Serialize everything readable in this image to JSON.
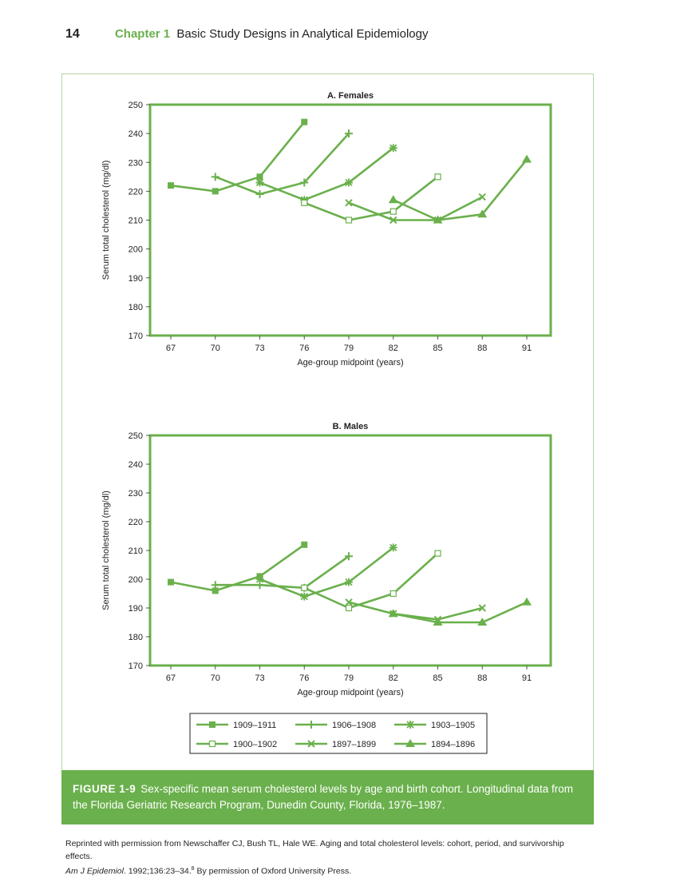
{
  "header": {
    "page_number": "14",
    "chapter_label": "Chapter 1",
    "chapter_title": "Basic Study Designs in Analytical Epidemiology"
  },
  "colors": {
    "accent": "#6ab04c",
    "series": "#6ab04c"
  },
  "legend": {
    "entries": [
      {
        "label": "1909–1911",
        "marker": "filled-square"
      },
      {
        "label": "1906–1908",
        "marker": "plus"
      },
      {
        "label": "1903–1905",
        "marker": "asterisk"
      },
      {
        "label": "1900–1902",
        "marker": "open-square"
      },
      {
        "label": "1897–1899",
        "marker": "x"
      },
      {
        "label": "1894–1896",
        "marker": "filled-triangle"
      }
    ]
  },
  "chart_data": [
    {
      "type": "line",
      "title": "A. Females",
      "xlabel": "Age-group midpoint (years)",
      "ylabel": "Serum total cholesterol (mg/dl)",
      "ylim": [
        170,
        250
      ],
      "y_ticks": [
        170,
        180,
        190,
        200,
        210,
        220,
        230,
        240,
        250
      ],
      "x_ticks": [
        67,
        70,
        73,
        76,
        79,
        82,
        85,
        88,
        91
      ],
      "grid": false,
      "series": [
        {
          "name": "1909–1911",
          "marker": "filled-square",
          "x": [
            67,
            70,
            73,
            76
          ],
          "y": [
            222,
            220,
            225,
            244
          ]
        },
        {
          "name": "1906–1908",
          "marker": "plus",
          "x": [
            70,
            73,
            76,
            79
          ],
          "y": [
            225,
            219,
            223,
            240
          ]
        },
        {
          "name": "1903–1905",
          "marker": "asterisk",
          "x": [
            73,
            76,
            79,
            82
          ],
          "y": [
            223,
            217,
            223,
            235
          ]
        },
        {
          "name": "1900–1902",
          "marker": "open-square",
          "x": [
            76,
            79,
            82,
            85
          ],
          "y": [
            216,
            210,
            213,
            225
          ]
        },
        {
          "name": "1897–1899",
          "marker": "x",
          "x": [
            79,
            82,
            85,
            88
          ],
          "y": [
            216,
            210,
            210,
            218
          ]
        },
        {
          "name": "1894–1896",
          "marker": "filled-triangle",
          "x": [
            82,
            85,
            88,
            91
          ],
          "y": [
            217,
            210,
            212,
            231
          ]
        }
      ]
    },
    {
      "type": "line",
      "title": "B. Males",
      "xlabel": "Age-group midpoint (years)",
      "ylabel": "Serum total cholesterol (mg/dl)",
      "ylim": [
        170,
        250
      ],
      "y_ticks": [
        170,
        180,
        190,
        200,
        210,
        220,
        230,
        240,
        250
      ],
      "x_ticks": [
        67,
        70,
        73,
        76,
        79,
        82,
        85,
        88,
        91
      ],
      "grid": false,
      "series": [
        {
          "name": "1909–1911",
          "marker": "filled-square",
          "x": [
            67,
            70,
            73,
            76
          ],
          "y": [
            199,
            196,
            201,
            212
          ]
        },
        {
          "name": "1906–1908",
          "marker": "plus",
          "x": [
            70,
            73,
            76,
            79
          ],
          "y": [
            198,
            198,
            197,
            208
          ]
        },
        {
          "name": "1903–1905",
          "marker": "asterisk",
          "x": [
            73,
            76,
            79,
            82
          ],
          "y": [
            200,
            194,
            199,
            211
          ]
        },
        {
          "name": "1900–1902",
          "marker": "open-square",
          "x": [
            76,
            79,
            82,
            85
          ],
          "y": [
            197,
            190,
            195,
            209
          ]
        },
        {
          "name": "1897–1899",
          "marker": "x",
          "x": [
            79,
            82,
            85,
            88
          ],
          "y": [
            192,
            188,
            186,
            190
          ]
        },
        {
          "name": "1894–1896",
          "marker": "filled-triangle",
          "x": [
            82,
            85,
            88,
            91
          ],
          "y": [
            188,
            185,
            185,
            192
          ]
        }
      ]
    }
  ],
  "caption": {
    "label": "FIGURE 1-9",
    "text": "Sex-specific mean serum cholesterol levels by age and birth cohort. Longitudinal data from the Florida Geriatric Research Program, Dunedin County, Florida, 1976–1987."
  },
  "credit": {
    "line1": "Reprinted with permission from Newschaffer CJ, Bush TL, Hale WE. Aging and total cholesterol levels: cohort, period, and survivorship effects.",
    "journal": "Am J Epidemiol",
    "line2_rest": ". 1992;136:23–34.",
    "ref": "8",
    "line2_end": " By permission of Oxford University Press."
  }
}
